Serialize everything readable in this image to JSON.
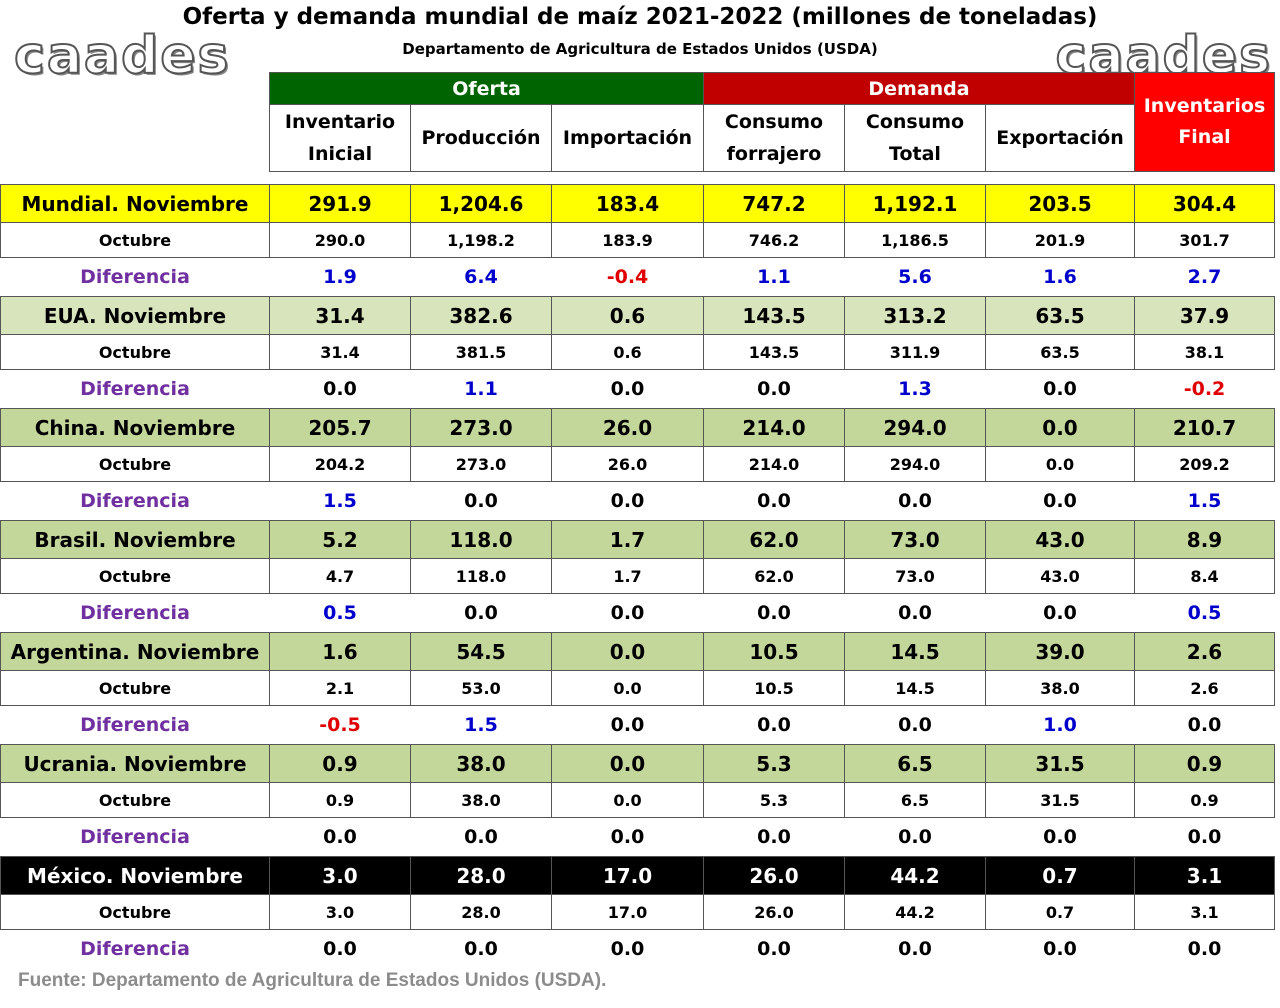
{
  "title": "Oferta y demanda mundial de maíz 2021-2022 (millones de toneladas)",
  "subtitle": "Departamento de Agricultura de Estados Unidos (USDA)",
  "logo_text": "caades",
  "source": "Fuente: Departamento de Agricultura de Estados Unidos (USDA).",
  "colors": {
    "oferta_header": "#006400",
    "demanda_header": "#c00000",
    "inventario_final_header": "#ff0000",
    "mundial_row": "#ffff00",
    "eua_row": "#d8e4bc",
    "country_row": "#c4d79b",
    "mexico_row": "#000000",
    "positive_diff": "#0000cc",
    "negative_diff": "#e00000",
    "diferencia_label": "#7030a0",
    "source_text": "#8c8c8c"
  },
  "chart_data": {
    "type": "table",
    "groups": [
      {
        "label": "Oferta",
        "span": 3
      },
      {
        "label": "Demanda",
        "span": 3
      }
    ],
    "final_header_lines": [
      "Inventarios",
      "Final"
    ],
    "columns": [
      {
        "lines": [
          "Inventario",
          "Inicial"
        ]
      },
      {
        "lines": [
          "Producción"
        ]
      },
      {
        "lines": [
          "Importación"
        ]
      },
      {
        "lines": [
          "Consumo",
          "forrajero"
        ]
      },
      {
        "lines": [
          "Consumo",
          "Total"
        ]
      },
      {
        "lines": [
          "Exportación"
        ]
      }
    ],
    "sub_labels": {
      "octubre": "Octubre",
      "diferencia": "Diferencia"
    },
    "blocks": [
      {
        "label": "Mundial. Noviembre",
        "style": "mundial",
        "noviembre": [
          "291.9",
          "1,204.6",
          "183.4",
          "747.2",
          "1,192.1",
          "203.5",
          "304.4"
        ],
        "octubre": [
          "290.0",
          "1,198.2",
          "183.9",
          "746.2",
          "1,186.5",
          "201.9",
          "301.7"
        ],
        "diferencia": [
          "1.9",
          "6.4",
          "-0.4",
          "1.1",
          "5.6",
          "1.6",
          "2.7"
        ]
      },
      {
        "label": "EUA. Noviembre",
        "style": "eua",
        "noviembre": [
          "31.4",
          "382.6",
          "0.6",
          "143.5",
          "313.2",
          "63.5",
          "37.9"
        ],
        "octubre": [
          "31.4",
          "381.5",
          "0.6",
          "143.5",
          "311.9",
          "63.5",
          "38.1"
        ],
        "diferencia": [
          "0.0",
          "1.1",
          "0.0",
          "0.0",
          "1.3",
          "0.0",
          "-0.2"
        ]
      },
      {
        "label": "China. Noviembre",
        "style": "country",
        "noviembre": [
          "205.7",
          "273.0",
          "26.0",
          "214.0",
          "294.0",
          "0.0",
          "210.7"
        ],
        "octubre": [
          "204.2",
          "273.0",
          "26.0",
          "214.0",
          "294.0",
          "0.0",
          "209.2"
        ],
        "diferencia": [
          "1.5",
          "0.0",
          "0.0",
          "0.0",
          "0.0",
          "0.0",
          "1.5"
        ]
      },
      {
        "label": "Brasil. Noviembre",
        "style": "country",
        "noviembre": [
          "5.2",
          "118.0",
          "1.7",
          "62.0",
          "73.0",
          "43.0",
          "8.9"
        ],
        "octubre": [
          "4.7",
          "118.0",
          "1.7",
          "62.0",
          "73.0",
          "43.0",
          "8.4"
        ],
        "diferencia": [
          "0.5",
          "0.0",
          "0.0",
          "0.0",
          "0.0",
          "0.0",
          "0.5"
        ]
      },
      {
        "label": "Argentina. Noviembre",
        "style": "country",
        "noviembre": [
          "1.6",
          "54.5",
          "0.0",
          "10.5",
          "14.5",
          "39.0",
          "2.6"
        ],
        "octubre": [
          "2.1",
          "53.0",
          "0.0",
          "10.5",
          "14.5",
          "38.0",
          "2.6"
        ],
        "diferencia": [
          "-0.5",
          "1.5",
          "0.0",
          "0.0",
          "0.0",
          "1.0",
          "0.0"
        ]
      },
      {
        "label": "Ucrania. Noviembre",
        "style": "country",
        "noviembre": [
          "0.9",
          "38.0",
          "0.0",
          "5.3",
          "6.5",
          "31.5",
          "0.9"
        ],
        "octubre": [
          "0.9",
          "38.0",
          "0.0",
          "5.3",
          "6.5",
          "31.5",
          "0.9"
        ],
        "diferencia": [
          "0.0",
          "0.0",
          "0.0",
          "0.0",
          "0.0",
          "0.0",
          "0.0"
        ]
      },
      {
        "label": "México. Noviembre",
        "style": "mexico",
        "noviembre": [
          "3.0",
          "28.0",
          "17.0",
          "26.0",
          "44.2",
          "0.7",
          "3.1"
        ],
        "octubre": [
          "3.0",
          "28.0",
          "17.0",
          "26.0",
          "44.2",
          "0.7",
          "3.1"
        ],
        "diferencia": [
          "0.0",
          "0.0",
          "0.0",
          "0.0",
          "0.0",
          "0.0",
          "0.0"
        ]
      }
    ]
  }
}
